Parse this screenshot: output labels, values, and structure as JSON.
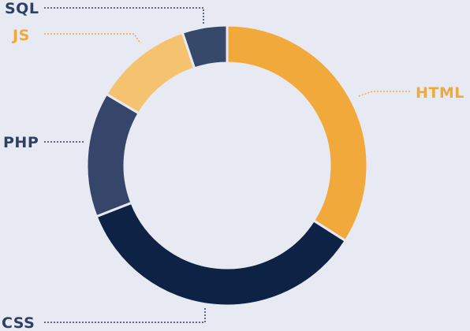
{
  "chart_data": {
    "type": "pie",
    "donut": true,
    "legend": "none",
    "categories": [
      "HTML",
      "CSS",
      "PHP",
      "JS",
      "SQL"
    ],
    "values": [
      33,
      34,
      14,
      11,
      5
    ],
    "colors": {
      "HTML": "#f2a93b",
      "CSS": "#0e2246",
      "PHP": "#35466a",
      "JS": "#f5c370",
      "SQL": "#36496b"
    },
    "label_colors": {
      "HTML": "#f2a93b",
      "CSS": "#2f4063",
      "PHP": "#2f4063",
      "JS": "#f2a93b",
      "SQL": "#2f4063"
    },
    "background": "#e8eaf3",
    "separator_color": "#e8eaf3"
  }
}
